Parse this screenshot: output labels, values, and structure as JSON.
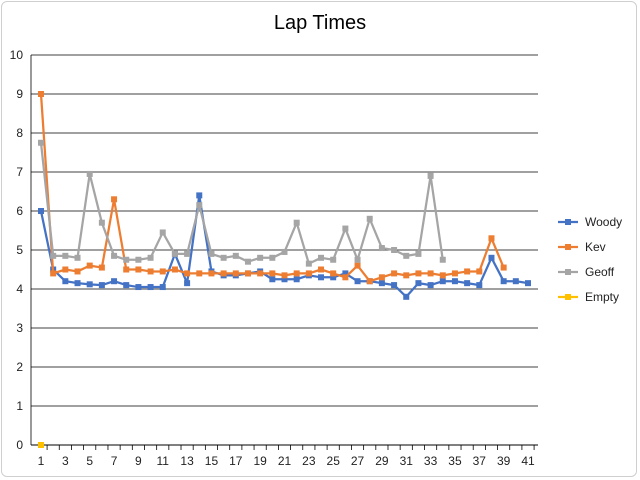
{
  "chart_data": {
    "type": "line",
    "title": "Lap Times",
    "xlabel": "",
    "ylabel": "",
    "x": [
      1,
      2,
      3,
      4,
      5,
      6,
      7,
      8,
      9,
      10,
      11,
      12,
      13,
      14,
      15,
      16,
      17,
      18,
      19,
      20,
      21,
      22,
      23,
      24,
      25,
      26,
      27,
      28,
      29,
      30,
      31,
      32,
      33,
      34,
      35,
      36,
      37,
      38,
      39,
      40,
      41
    ],
    "x_tick_labels": [
      "1",
      "3",
      "5",
      "7",
      "9",
      "11",
      "13",
      "15",
      "17",
      "19",
      "21",
      "23",
      "25",
      "27",
      "29",
      "31",
      "33",
      "35",
      "37",
      "39",
      "41"
    ],
    "ylim": [
      0,
      10
    ],
    "y_tick_labels": [
      "0",
      "1",
      "2",
      "3",
      "4",
      "5",
      "6",
      "7",
      "8",
      "9",
      "10"
    ],
    "grid": true,
    "legend_position": "right",
    "series": [
      {
        "name": "Woody",
        "color": "#4472c4",
        "values": [
          6.0,
          4.5,
          4.2,
          4.15,
          4.12,
          4.1,
          4.2,
          4.1,
          4.05,
          4.05,
          4.05,
          4.9,
          4.15,
          6.4,
          4.45,
          4.35,
          4.35,
          4.4,
          4.45,
          4.25,
          4.25,
          4.25,
          4.35,
          4.3,
          4.3,
          4.4,
          4.2,
          4.2,
          4.15,
          4.1,
          3.8,
          4.15,
          4.1,
          4.2,
          4.2,
          4.15,
          4.1,
          4.8,
          4.2,
          4.2,
          4.15
        ]
      },
      {
        "name": "Kev",
        "color": "#ed7d31",
        "values": [
          9.0,
          4.4,
          4.5,
          4.45,
          4.6,
          4.55,
          6.3,
          4.5,
          4.5,
          4.45,
          4.45,
          4.5,
          4.4,
          4.4,
          4.4,
          4.4,
          4.4,
          4.4,
          4.4,
          4.4,
          4.35,
          4.4,
          4.4,
          4.5,
          4.4,
          4.3,
          4.6,
          4.2,
          4.3,
          4.4,
          4.35,
          4.4,
          4.4,
          4.35,
          4.4,
          4.45,
          4.45,
          5.3,
          4.55,
          null,
          null
        ]
      },
      {
        "name": "Geoff",
        "color": "#a5a5a5",
        "values": [
          7.75,
          4.85,
          4.85,
          4.8,
          6.95,
          5.7,
          4.85,
          4.75,
          4.75,
          4.8,
          5.45,
          4.9,
          4.9,
          6.15,
          4.9,
          4.8,
          4.85,
          4.7,
          4.8,
          4.8,
          4.95,
          5.7,
          4.65,
          4.8,
          4.75,
          5.55,
          4.75,
          5.8,
          5.05,
          5.0,
          4.85,
          4.9,
          6.9,
          4.75,
          null,
          null,
          null,
          null,
          null,
          null,
          null
        ]
      },
      {
        "name": "Empty",
        "color": "#ffc000",
        "values": [
          0,
          null,
          null,
          null,
          null,
          null,
          null,
          null,
          null,
          null,
          null,
          null,
          null,
          null,
          null,
          null,
          null,
          null,
          null,
          null,
          null,
          null,
          null,
          null,
          null,
          null,
          null,
          null,
          null,
          null,
          null,
          null,
          null,
          null,
          null,
          null,
          null,
          null,
          null,
          null,
          null
        ]
      }
    ]
  }
}
